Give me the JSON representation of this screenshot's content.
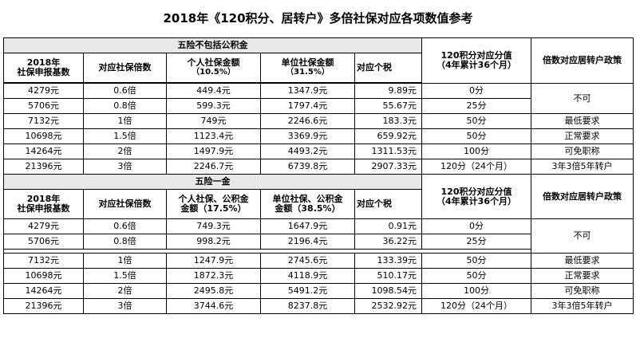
{
  "title": "2018年《120积分、居转户》多倍社保对应各项数值参考",
  "section1": {
    "header": "五险不包括公积金",
    "col_base": "2018年\n社保申报基数",
    "col_mult": "对应社保倍数",
    "col_personal": "个人社保金额",
    "col_personal_rate": "（10.5%）",
    "col_company": "单位社保金额",
    "col_company_rate": "（31.5%）",
    "col_tax": "对应个税",
    "col_points": "120积分对应分值",
    "col_points_note": "（4年累计36个月）",
    "col_policy": "倍数对应居转户政策",
    "rows": [
      {
        "base": "4279元",
        "mult": "0.6倍",
        "personal": "449.4元",
        "company": "1347.9元",
        "tax": "9.89元",
        "points": "0分"
      },
      {
        "base": "5706元",
        "mult": "0.8倍",
        "personal": "599.3元",
        "company": "1797.4元",
        "tax": "55.67元",
        "points": "25分"
      },
      {
        "base": "7132元",
        "mult": "1倍",
        "personal": "749元",
        "company": "2246.6元",
        "tax": "183.3元",
        "points": "50分"
      },
      {
        "base": "10698元",
        "mult": "1.5倍",
        "personal": "1123.4元",
        "company": "3369.9元",
        "tax": "659.92元",
        "points": "50分"
      },
      {
        "base": "14264元",
        "mult": "2倍",
        "personal": "1497.9元",
        "company": "4493.2元",
        "tax": "1311.53元",
        "points": "100分"
      },
      {
        "base": "21396元",
        "mult": "3倍",
        "personal": "2246.7元",
        "company": "6739.8元",
        "tax": "2907.33元",
        "points": "120分（24个月）"
      }
    ],
    "policy": {
      "no": "不可",
      "min": "最低要求",
      "normal": "正常要求",
      "exempt": "可免职称",
      "three": "3年3倍5年转户"
    }
  },
  "section2": {
    "header": "五险一金",
    "col_base": "2018年\n社保申报基数",
    "col_mult": "对应社保倍数",
    "col_personal": "个人社保、公积金\n金额（17.5%）",
    "col_company": "单位社保、公积金\n金额（38.5%）",
    "col_tax": "对应个税",
    "col_points": "120积分对应分值",
    "col_points_note": "（4年累计36个月）",
    "col_policy": "倍数对应居转户政策",
    "rows": [
      {
        "base": "4279元",
        "mult": "0.6倍",
        "personal": "749.3元",
        "company": "1647.9元",
        "tax": "0.91元",
        "points": "0分"
      },
      {
        "base": "5706元",
        "mult": "0.8倍",
        "personal": "998.2元",
        "company": "2196.4元",
        "tax": "36.22元",
        "points": "25分"
      },
      {
        "base": "7132元",
        "mult": "1倍",
        "personal": "1247.9元",
        "company": "2745.6元",
        "tax": "133.39元",
        "points": "50分"
      },
      {
        "base": "10698元",
        "mult": "1.5倍",
        "personal": "1872.3元",
        "company": "4118.9元",
        "tax": "510.17元",
        "points": "50分"
      },
      {
        "base": "14264元",
        "mult": "2倍",
        "personal": "2495.8元",
        "company": "5491.2元",
        "tax": "1098.54元",
        "points": "100分"
      },
      {
        "base": "21396元",
        "mult": "3倍",
        "personal": "3744.6元",
        "company": "8237.8元",
        "tax": "2532.92元",
        "points": "120分（24个月）"
      }
    ],
    "policy": {
      "no": "不可",
      "min": "最低要求",
      "normal": "正常要求",
      "exempt": "可免职称",
      "three": "3年3倍5年转户"
    }
  }
}
